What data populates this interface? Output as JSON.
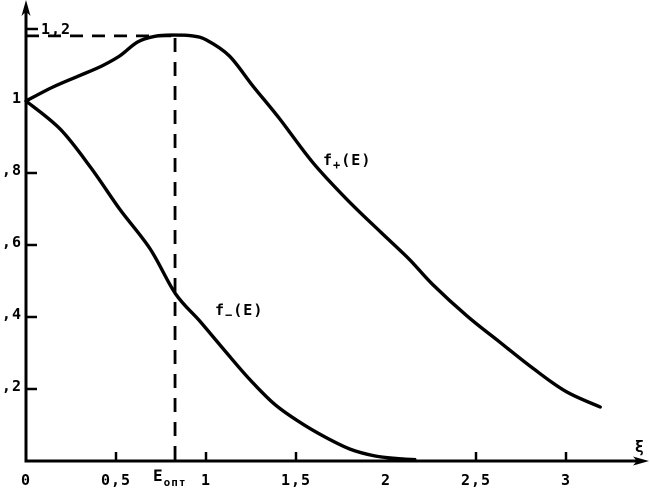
{
  "figure": {
    "background_color": "#ffffff",
    "ink_color": "#000000",
    "description": "scanned black-and-white line plot of two functions"
  },
  "chart_data": {
    "type": "line",
    "title": "",
    "xlabel": "ξ",
    "ylabel": "",
    "xlim": [
      0,
      3.45
    ],
    "ylim": [
      0,
      1.28
    ],
    "grid": false,
    "legend": "inline-labels",
    "x_ticks": [
      {
        "value": 0,
        "label": "0",
        "tick": false
      },
      {
        "value": 0.5,
        "label": "0,5",
        "tick": true
      },
      {
        "value": 1,
        "label": "1",
        "tick": true
      },
      {
        "value": 1.5,
        "label": "1,5",
        "tick": true
      },
      {
        "value": 2,
        "label": "2",
        "tick": false
      },
      {
        "value": 2.5,
        "label": "2,5",
        "tick": true
      },
      {
        "value": 3,
        "label": "3",
        "tick": true
      }
    ],
    "y_ticks": [
      {
        "value": 0.2,
        "label": "0,2",
        "tick": true,
        "side": "left"
      },
      {
        "value": 0.4,
        "label": "0,4",
        "tick": true,
        "side": "left"
      },
      {
        "value": 0.6,
        "label": "0,6",
        "tick": true,
        "side": "left"
      },
      {
        "value": 0.8,
        "label": "0,8",
        "tick": true,
        "side": "left"
      },
      {
        "value": 1.0,
        "label": "1",
        "tick": false,
        "side": "left"
      },
      {
        "value": 1.2,
        "label": "1,2",
        "tick": true,
        "side": "inside"
      }
    ],
    "series": [
      {
        "name": "f_plus",
        "label": {
          "text": "f₊(E)",
          "base": "f",
          "sub": "+",
          "rest": "(E)",
          "x": 1.65,
          "y": 0.822
        },
        "points": [
          [
            0.0,
            1.0
          ],
          [
            0.15,
            1.039
          ],
          [
            0.3,
            1.071
          ],
          [
            0.42,
            1.097
          ],
          [
            0.52,
            1.125
          ],
          [
            0.62,
            1.164
          ],
          [
            0.72,
            1.18
          ],
          [
            0.82,
            1.183
          ],
          [
            0.92,
            1.181
          ],
          [
            1.0,
            1.17
          ],
          [
            1.13,
            1.125
          ],
          [
            1.26,
            1.042
          ],
          [
            1.41,
            0.95
          ],
          [
            1.59,
            0.831
          ],
          [
            1.78,
            0.728
          ],
          [
            1.97,
            0.636
          ],
          [
            2.13,
            0.56
          ],
          [
            2.26,
            0.49
          ],
          [
            2.45,
            0.403
          ],
          [
            2.63,
            0.331
          ],
          [
            2.82,
            0.256
          ],
          [
            3.0,
            0.193
          ],
          [
            3.19,
            0.15
          ]
        ]
      },
      {
        "name": "f_minus",
        "label": {
          "text": "f₋(E)",
          "base": "f",
          "sub": "−",
          "rest": "(E)",
          "x": 1.05,
          "y": 0.406
        },
        "points": [
          [
            0.0,
            1.0
          ],
          [
            0.19,
            0.922
          ],
          [
            0.36,
            0.815
          ],
          [
            0.52,
            0.7
          ],
          [
            0.69,
            0.589
          ],
          [
            0.83,
            0.465
          ],
          [
            0.97,
            0.386
          ],
          [
            1.11,
            0.303
          ],
          [
            1.24,
            0.228
          ],
          [
            1.38,
            0.158
          ],
          [
            1.52,
            0.108
          ],
          [
            1.66,
            0.067
          ],
          [
            1.8,
            0.033
          ],
          [
            1.94,
            0.014
          ],
          [
            2.08,
            0.006
          ],
          [
            2.16,
            0.004
          ]
        ]
      }
    ],
    "annotations": {
      "optimum": {
        "x": 0.828,
        "peak_y": 1.181,
        "x_axis_label": {
          "text": "Eопт",
          "base": "E",
          "sub": "опт"
        },
        "dashed_horizontal": {
          "from_x": 0,
          "to_x": 0.845,
          "at_y": 1.181
        },
        "dashed_vertical": {
          "at_x": 0.828,
          "from_y": 0,
          "to_y": 1.175
        }
      },
      "x_axis_arrow_label": "ξ"
    }
  }
}
